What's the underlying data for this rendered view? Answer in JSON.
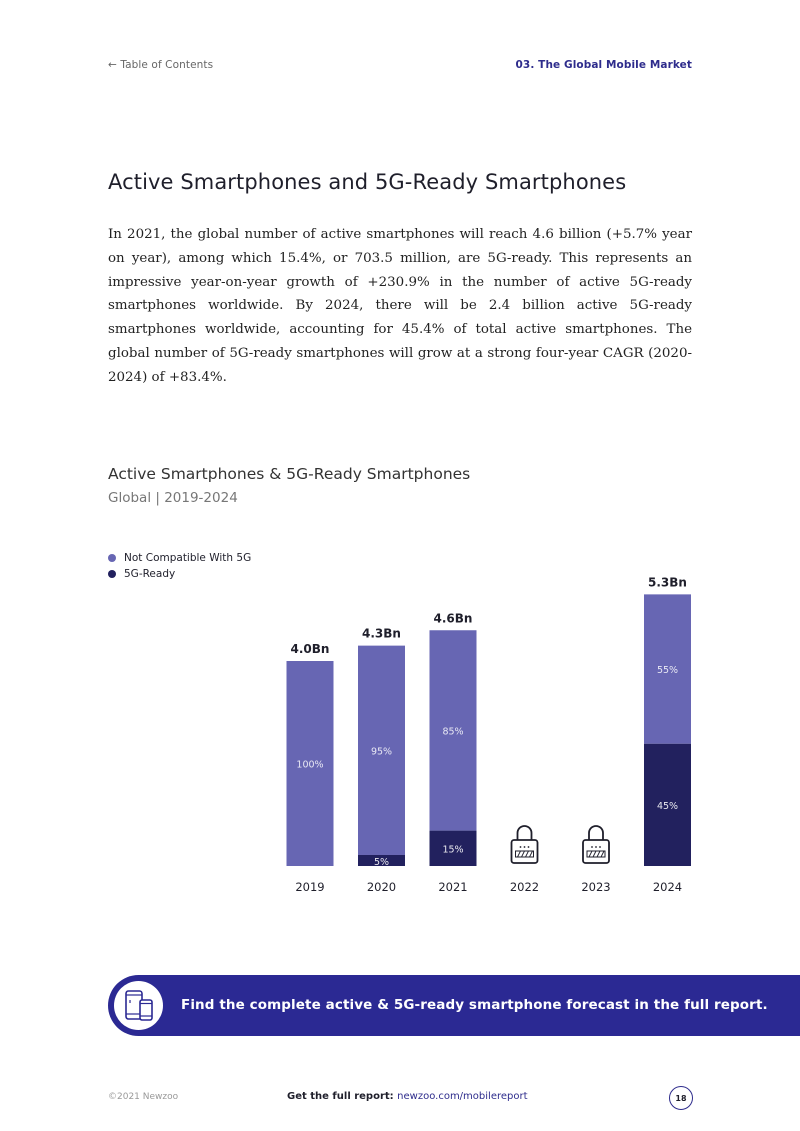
{
  "header": {
    "toc_link": "← Table of Contents",
    "section": "03. The Global Mobile Market"
  },
  "page_title": "Active Smartphones and 5G-Ready Smartphones",
  "body_text": "In 2021, the global number of active smartphones will reach 4.6 billion (+5.7% year on year), among which 15.4%, or 703.5 million, are 5G-ready. This represents an impressive year-on-year growth of +230.9% in the number of active 5G-ready smartphones worldwide. By 2024, there will be 2.4 billion active 5G-ready smartphones worldwide, accounting for 45.4% of total active smartphones. The global number of 5G-ready smartphones will grow at a strong four-year CAGR (2020-2024) of +83.4%.",
  "colors": {
    "not_compatible": "#6766b3",
    "ready": "#22215e",
    "accent": "#2e2c8c"
  },
  "chart_data": {
    "type": "bar",
    "stacked": true,
    "title": "Active Smartphones & 5G-Ready Smartphones",
    "subtitle": "Global | 2019-2024",
    "unit": "Bn",
    "categories": [
      "2019",
      "2020",
      "2021",
      "2022",
      "2023",
      "2024"
    ],
    "totals": [
      4.0,
      4.3,
      4.6,
      null,
      null,
      5.3
    ],
    "total_labels": [
      "4.0Bn",
      "4.3Bn",
      "4.6Bn",
      "",
      "",
      "5.3Bn"
    ],
    "locked": [
      false,
      false,
      false,
      true,
      true,
      false
    ],
    "series": [
      {
        "name": "Not Compatible With 5G",
        "percent": [
          100,
          95,
          85,
          null,
          null,
          55
        ],
        "labels": [
          "100%",
          "95%",
          "85%",
          "",
          "",
          "55%"
        ]
      },
      {
        "name": "5G-Ready",
        "percent": [
          0,
          5,
          15,
          null,
          null,
          45
        ],
        "labels": [
          "",
          "5%",
          "15%",
          "",
          "",
          "45%"
        ]
      }
    ],
    "legend_position": "top-left"
  },
  "cta": {
    "text": "Find the complete active & 5G-ready smartphone forecast in the full report.",
    "icon": "smartphones-icon"
  },
  "footer": {
    "copyright": "©2021 Newzoo",
    "get_report": "Get the full report:",
    "link": "newzoo.com/mobilereport",
    "page": "18"
  }
}
